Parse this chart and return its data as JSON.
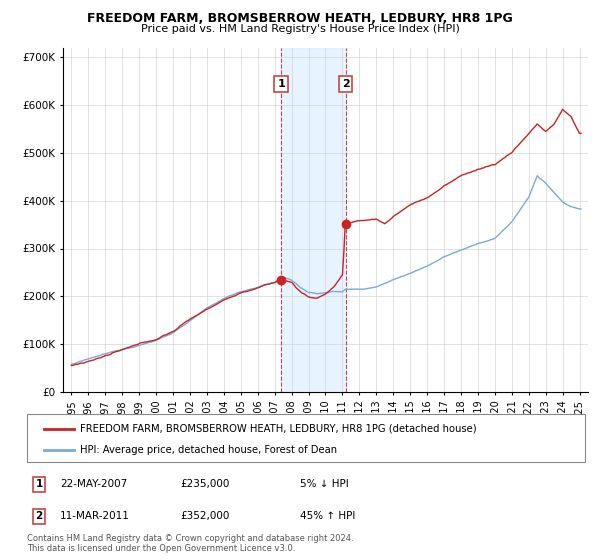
{
  "title": "FREEDOM FARM, BROMSBERROW HEATH, LEDBURY, HR8 1PG",
  "subtitle": "Price paid vs. HM Land Registry's House Price Index (HPI)",
  "ylim": [
    0,
    720000
  ],
  "yticks": [
    0,
    100000,
    200000,
    300000,
    400000,
    500000,
    600000,
    700000
  ],
  "yticklabels": [
    "£0",
    "£100K",
    "£200K",
    "£300K",
    "£400K",
    "£500K",
    "£600K",
    "£700K"
  ],
  "hpi_color": "#7aaadd",
  "price_color": "#cc2222",
  "shade_color": "#ddeeff",
  "transaction1": {
    "date": "22-MAY-2007",
    "price": 235000,
    "pct": "5%",
    "direction": "↓",
    "x": 2007.38
  },
  "transaction2": {
    "date": "11-MAR-2011",
    "price": 352000,
    "pct": "45%",
    "direction": "↑",
    "x": 2011.19
  },
  "legend_line1": "FREEDOM FARM, BROMSBERROW HEATH, LEDBURY, HR8 1PG (detached house)",
  "legend_line2": "HPI: Average price, detached house, Forest of Dean",
  "footnote": "Contains HM Land Registry data © Crown copyright and database right 2024.\nThis data is licensed under the Open Government Licence v3.0.",
  "xlim": [
    1994.5,
    2025.5
  ],
  "xticks": [
    1995,
    1996,
    1997,
    1998,
    1999,
    2000,
    2001,
    2002,
    2003,
    2004,
    2005,
    2006,
    2007,
    2008,
    2009,
    2010,
    2011,
    2012,
    2013,
    2014,
    2015,
    2016,
    2017,
    2018,
    2019,
    2020,
    2021,
    2022,
    2023,
    2024,
    2025
  ]
}
